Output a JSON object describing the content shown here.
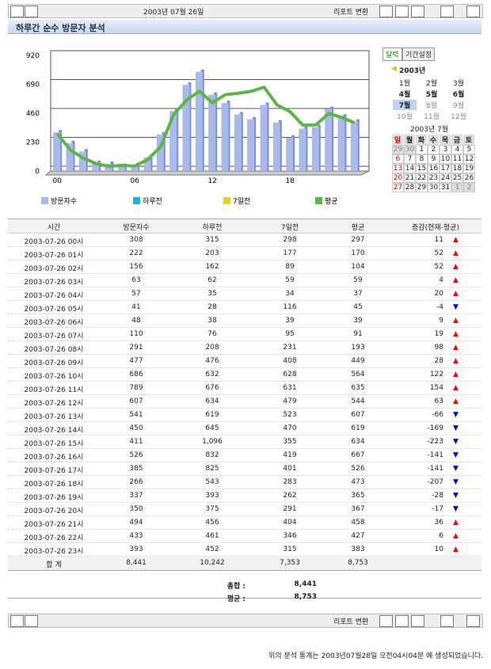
{
  "toolbar": {
    "date": "2003년 07월 26일",
    "report": "리포트 변환"
  },
  "title": "하루간 순수 방문자 분석",
  "chart_data": {
    "type": "bar",
    "categories": [
      "00",
      null,
      null,
      null,
      null,
      null,
      "06",
      null,
      null,
      null,
      null,
      null,
      "12",
      null,
      null,
      null,
      null,
      null,
      "18",
      null,
      null,
      null,
      null,
      null
    ],
    "ylim": [
      0,
      920
    ],
    "yticks": [
      0,
      230,
      460,
      690,
      920
    ],
    "grid": true,
    "series": [
      {
        "name": "방문자수",
        "color": "#a9b9ea",
        "values": [
          308,
          222,
          156,
          63,
          57,
          41,
          48,
          110,
          291,
          477,
          686,
          789,
          607,
          541,
          450,
          411,
          526,
          385,
          266,
          337,
          350,
          494,
          433,
          393
        ]
      },
      {
        "name": "하루전",
        "color": "#1fb0e6"
      },
      {
        "name": "7일전",
        "color": "#e6d21c"
      },
      {
        "name": "평균",
        "color": "#5fb446",
        "values": [
          297,
          170,
          104,
          59,
          37,
          45,
          39,
          91,
          193,
          449,
          564,
          635,
          544,
          607,
          619,
          634,
          667,
          526,
          473,
          365,
          367,
          458,
          427,
          383
        ]
      }
    ]
  },
  "calendar": {
    "tabs": [
      "달력",
      "기간설정"
    ],
    "year": "2003년",
    "months": [
      "1월",
      "2월",
      "3월",
      "4월",
      "5월",
      "6월",
      "7월",
      "8월",
      "9월",
      "10월",
      "11월",
      "12월"
    ],
    "month_title": "2003년 7월",
    "weekdays": [
      "일",
      "월",
      "화",
      "수",
      "목",
      "금",
      "토"
    ],
    "days": [
      [
        "29",
        "30",
        "1",
        "2",
        "3",
        "4",
        "5"
      ],
      [
        "6",
        "7",
        "8",
        "9",
        "10",
        "11",
        "12"
      ],
      [
        "13",
        "14",
        "15",
        "16",
        "17",
        "18",
        "19"
      ],
      [
        "20",
        "21",
        "22",
        "23",
        "24",
        "25",
        "26"
      ],
      [
        "27",
        "28",
        "29",
        "30",
        "31",
        "1",
        "2"
      ]
    ]
  },
  "table": {
    "header": [
      "시간",
      "방문자수",
      "하루전",
      "7일전",
      "평균",
      "증감(현재-평균)"
    ],
    "rows": [
      [
        "2003-07-26 00시",
        "308",
        "315",
        "298",
        "297",
        "11"
      ],
      [
        "2003-07-26 01시",
        "222",
        "203",
        "177",
        "170",
        "52"
      ],
      [
        "2003-07-26 02시",
        "156",
        "162",
        "89",
        "104",
        "52"
      ],
      [
        "2003-07-26 03시",
        "63",
        "62",
        "59",
        "59",
        "4"
      ],
      [
        "2003-07-26 04시",
        "57",
        "35",
        "34",
        "37",
        "20"
      ],
      [
        "2003-07-26 05시",
        "41",
        "28",
        "116",
        "45",
        "-4"
      ],
      [
        "2003-07-26 06시",
        "48",
        "38",
        "39",
        "39",
        "9"
      ],
      [
        "2003-07-26 07시",
        "110",
        "76",
        "95",
        "91",
        "19"
      ],
      [
        "2003-07-26 08시",
        "291",
        "208",
        "231",
        "193",
        "98"
      ],
      [
        "2003-07-26 09시",
        "477",
        "476",
        "408",
        "449",
        "28"
      ],
      [
        "2003-07-26 10시",
        "686",
        "632",
        "628",
        "564",
        "122"
      ],
      [
        "2003-07-26 11시",
        "789",
        "676",
        "631",
        "635",
        "154"
      ],
      [
        "2003-07-26 12시",
        "607",
        "634",
        "479",
        "544",
        "63"
      ],
      [
        "2003-07-26 13시",
        "541",
        "619",
        "523",
        "607",
        "-66"
      ],
      [
        "2003-07-26 14시",
        "450",
        "645",
        "470",
        "619",
        "-169"
      ],
      [
        "2003-07-26 15시",
        "411",
        "1,096",
        "355",
        "634",
        "-223"
      ],
      [
        "2003-07-26 16시",
        "526",
        "832",
        "419",
        "667",
        "-141"
      ],
      [
        "2003-07-26 17시",
        "385",
        "825",
        "401",
        "526",
        "-141"
      ],
      [
        "2003-07-26 18시",
        "266",
        "543",
        "283",
        "473",
        "-207"
      ],
      [
        "2003-07-26 19시",
        "337",
        "393",
        "262",
        "365",
        "-28"
      ],
      [
        "2003-07-26 20시",
        "350",
        "375",
        "291",
        "367",
        "-17"
      ],
      [
        "2003-07-26 21시",
        "494",
        "456",
        "404",
        "458",
        "36"
      ],
      [
        "2003-07-26 22시",
        "433",
        "461",
        "346",
        "427",
        "6"
      ],
      [
        "2003-07-26 23시",
        "393",
        "452",
        "315",
        "383",
        "10"
      ]
    ],
    "total": [
      "합 계",
      "8,441",
      "10,242",
      "7,353",
      "8,753"
    ]
  },
  "summary": [
    {
      "label": "총합 :",
      "value": "8,441"
    },
    {
      "label": "평균 :",
      "value": "8,753"
    }
  ],
  "footer": "위의 분석 통계는 2003년07월28일 오전04시04분 에 생성되었습니다."
}
